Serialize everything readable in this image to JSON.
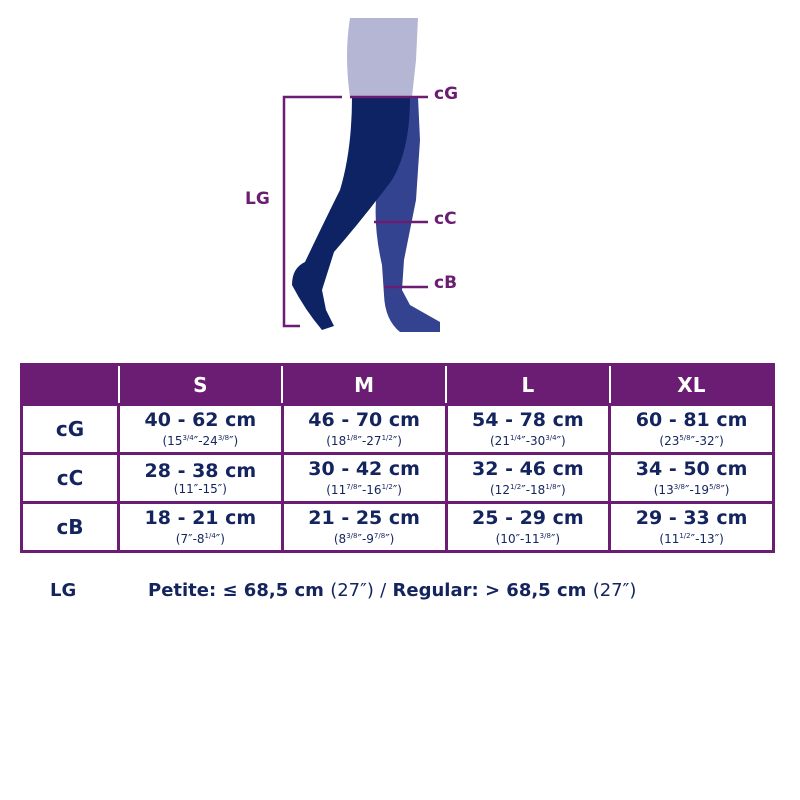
{
  "diagram": {
    "labels": {
      "cG": "cG",
      "cC": "cC",
      "cB": "cB",
      "LG": "LG"
    },
    "colors": {
      "accent": "#6a1d72",
      "stocking_front": "#0d2364",
      "stocking_back": "#34438f",
      "skin": "#b4b6d4",
      "text": "#14245e"
    }
  },
  "table": {
    "headers": [
      "",
      "S",
      "M",
      "L",
      "XL"
    ],
    "rows": [
      {
        "label": "cG",
        "cells": [
          {
            "cm": "40 - 62 cm",
            "inch": [
              [
                "(15",
                "3/4"
              ],
              [
                "″-24",
                "3/8"
              ],
              [
                "″)",
                ""
              ]
            ]
          },
          {
            "cm": "46 - 70 cm",
            "inch": [
              [
                "(18",
                "1/8"
              ],
              [
                "″-27",
                "1/2"
              ],
              [
                "″)",
                ""
              ]
            ]
          },
          {
            "cm": "54 - 78 cm",
            "inch": [
              [
                "(21",
                "1/4"
              ],
              [
                "″-30",
                "3/4"
              ],
              [
                "″)",
                ""
              ]
            ]
          },
          {
            "cm": "60 - 81 cm",
            "inch": [
              [
                "(23",
                "5/8"
              ],
              [
                "″-32″)",
                ""
              ]
            ]
          }
        ]
      },
      {
        "label": "cC",
        "cells": [
          {
            "cm": "28 - 38 cm",
            "inch": [
              [
                "(11″-15″)",
                ""
              ]
            ]
          },
          {
            "cm": "30 - 42 cm",
            "inch": [
              [
                "(11",
                "7/8"
              ],
              [
                "″-16",
                "1/2"
              ],
              [
                "″)",
                ""
              ]
            ]
          },
          {
            "cm": "32 - 46 cm",
            "inch": [
              [
                "(12",
                "1/2"
              ],
              [
                "″-18",
                "1/8"
              ],
              [
                "″)",
                ""
              ]
            ]
          },
          {
            "cm": "34 - 50 cm",
            "inch": [
              [
                "(13",
                "3/8"
              ],
              [
                "″-19",
                "5/8"
              ],
              [
                "″)",
                ""
              ]
            ]
          }
        ]
      },
      {
        "label": "cB",
        "cells": [
          {
            "cm": "18 - 21 cm",
            "inch": [
              [
                "(7″-8",
                "1/4"
              ],
              [
                "″)",
                ""
              ]
            ]
          },
          {
            "cm": "21 - 25 cm",
            "inch": [
              [
                "(8",
                "3/8"
              ],
              [
                "″-9",
                "7/8"
              ],
              [
                "″)",
                ""
              ]
            ]
          },
          {
            "cm": "25 - 29 cm",
            "inch": [
              [
                "(10″-11",
                "3/8"
              ],
              [
                "″)",
                ""
              ]
            ]
          },
          {
            "cm": "29 - 33 cm",
            "inch": [
              [
                "(11",
                "1/2"
              ],
              [
                "″-13″)",
                ""
              ]
            ]
          }
        ]
      }
    ]
  },
  "footer": {
    "label": "LG",
    "petite": "Petite: ≤ 68,5 cm",
    "petite_in": "(27″)",
    "sep": "/",
    "regular": "Regular: > 68,5 cm",
    "regular_in": "(27″)"
  }
}
